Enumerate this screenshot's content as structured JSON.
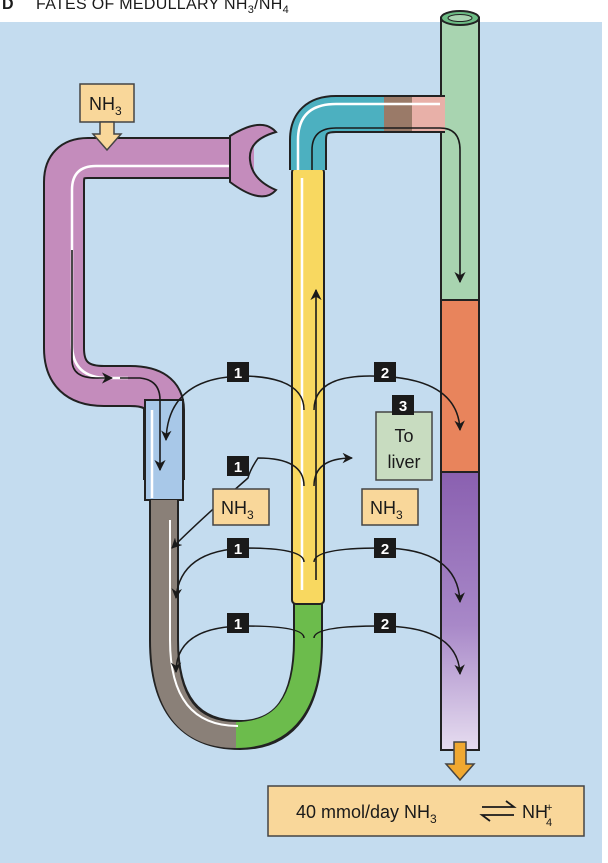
{
  "title": {
    "letter": "D",
    "text_main": "FATES OF MEDULLARY NH",
    "sub1": "3",
    "slash": "/NH",
    "sub2": "4"
  },
  "labels": {
    "nh3_top": "NH",
    "nh3_top_sub": "3",
    "nh3_left": "NH",
    "nh3_left_sub": "3",
    "nh3_right": "NH",
    "nh3_right_sub": "3",
    "to_liver_line1": "To",
    "to_liver_line2": "liver"
  },
  "badges": {
    "b1": "1",
    "b2": "2",
    "b3": "3"
  },
  "bottom_box": {
    "prefix": "40 mmol/day NH",
    "sub": "3",
    "product": "NH",
    "product_sup": "+",
    "product_sub": "4"
  },
  "colors": {
    "background": "#c4dcef",
    "proximal_tubule": "#c48cbc",
    "thin_descending": "#a8c8e8",
    "thin_limb": "#8a8078",
    "thin_ascending": "#6cbc4c",
    "thick_ascending": "#f8d860",
    "distal": "#4cb0c0",
    "collecting_duct_cortex": "#a8d4b0",
    "collecting_duct_outer": "#e8845c",
    "collecting_duct_inner": "#8a60b0",
    "label_box": "#f9d79a",
    "liver_box": "#c8dcc0",
    "arrow_orange": "#f0a830"
  }
}
